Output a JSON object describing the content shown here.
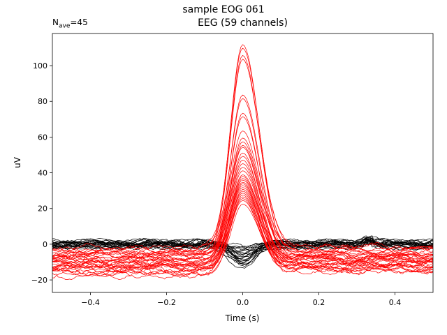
{
  "figure_title": "sample EOG 061",
  "nave": {
    "prefix": "N",
    "sub": "ave",
    "suffix": "=45"
  },
  "chart_data": {
    "type": "line",
    "title": "EEG (59 channels)",
    "xlabel": "Time (s)",
    "ylabel": "uV",
    "xlim": [
      -0.5,
      0.5
    ],
    "ylim": [
      -27,
      118
    ],
    "xticks": [
      -0.4,
      -0.2,
      0.0,
      0.2,
      0.4
    ],
    "xtick_labels": [
      "−0.4",
      "−0.2",
      "0.0",
      "0.2",
      "0.4"
    ],
    "yticks": [
      -20,
      0,
      20,
      40,
      60,
      80,
      100
    ],
    "ytick_labels": [
      "−20",
      "0",
      "20",
      "40",
      "60",
      "80",
      "100"
    ],
    "grid": false,
    "legend": "none",
    "colors": {
      "red": "#ff0000",
      "black": "#000000",
      "spine": "#000000"
    },
    "groups": [
      {
        "color": "red",
        "count": 35,
        "peak_values": [
          112,
          110,
          106,
          104,
          84,
          82,
          74,
          72,
          64,
          60,
          58,
          56,
          55,
          52,
          50,
          48,
          46,
          44,
          42,
          40,
          39,
          38,
          37,
          36,
          35,
          34,
          33,
          32,
          31,
          30,
          29,
          28,
          27,
          26,
          24
        ],
        "peak_x": 0.0,
        "baseline_pre": [
          -4,
          -20
        ],
        "baseline_post": [
          -2,
          -20
        ]
      },
      {
        "color": "black",
        "count": 24,
        "trough_values": [
          -12,
          -11,
          -10,
          -9,
          -8,
          -7,
          -6,
          -5,
          -4,
          -3,
          -2,
          -1
        ],
        "baseline": [
          -3,
          3
        ]
      }
    ]
  }
}
